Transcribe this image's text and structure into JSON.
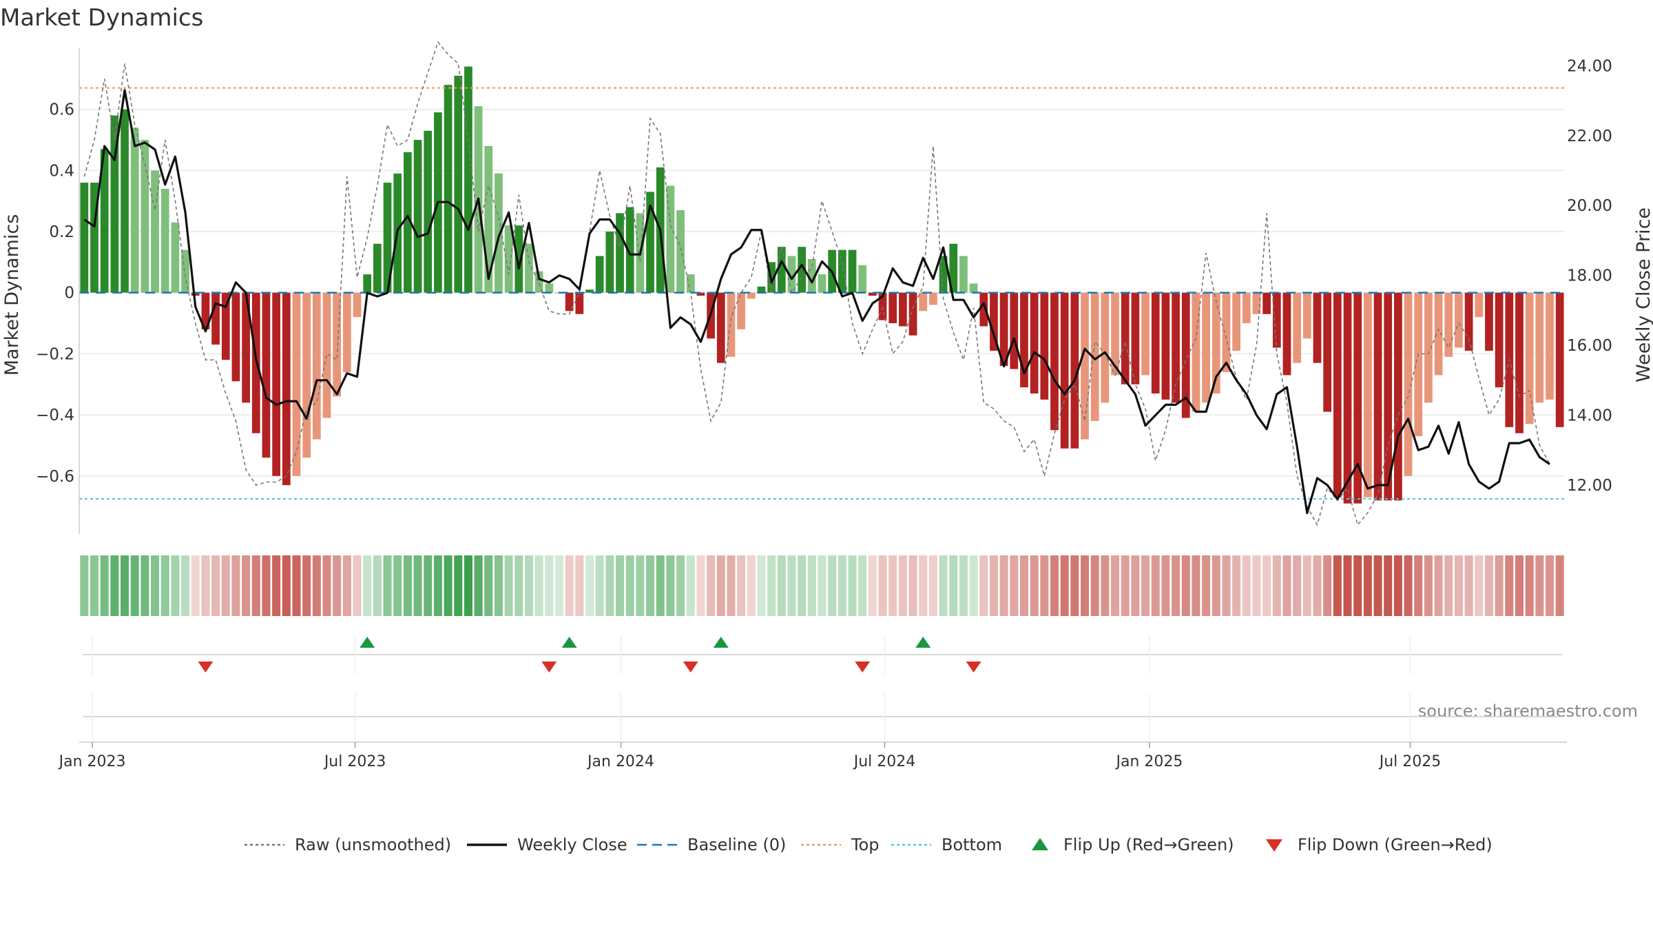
{
  "chart_data": {
    "type": "bar",
    "title": "Market Dynamics",
    "ylabel_left": "Market Dynamics",
    "ylabel_right": "Weekly Close Price",
    "source_note": "source: sharemaestro.com",
    "ylim_left": [
      -0.79,
      0.8
    ],
    "ylim_right": [
      10.6,
      24.5
    ],
    "left_ticks": [
      {
        "value": 0.6,
        "label": "0.6"
      },
      {
        "value": 0.4,
        "label": "0.4"
      },
      {
        "value": 0.2,
        "label": "0.2"
      },
      {
        "value": 0,
        "label": "0"
      },
      {
        "value": -0.2,
        "label": "−0.2"
      },
      {
        "value": -0.4,
        "label": "−0.4"
      },
      {
        "value": -0.6,
        "label": "−0.6"
      }
    ],
    "right_ticks": [
      {
        "value": 24,
        "label": "24.00"
      },
      {
        "value": 22,
        "label": "22.00"
      },
      {
        "value": 20,
        "label": "20.00"
      },
      {
        "value": 18,
        "label": "18.00"
      },
      {
        "value": 16,
        "label": "16.00"
      },
      {
        "value": 14,
        "label": "14.00"
      },
      {
        "value": 12,
        "label": "12.00"
      }
    ],
    "x_ticks": [
      {
        "index": 1.3,
        "label": "Jan 2023"
      },
      {
        "index": 27.3,
        "label": "Jul 2023"
      },
      {
        "index": 53.6,
        "label": "Jan 2024"
      },
      {
        "index": 79.7,
        "label": "Jul 2024"
      },
      {
        "index": 105.9,
        "label": "Jan 2025"
      },
      {
        "index": 131.7,
        "label": "Jul 2025"
      }
    ],
    "reference_lines": {
      "baseline": 0,
      "top": 0.67,
      "bottom": -0.675
    },
    "series": [
      {
        "name": "Market Dynamics",
        "kind": "bar",
        "values": [
          0.36,
          0.36,
          0.47,
          0.58,
          0.6,
          0.54,
          0.5,
          0.4,
          0.34,
          0.23,
          0.14,
          -0.01,
          -0.12,
          -0.17,
          -0.22,
          -0.29,
          -0.36,
          -0.46,
          -0.54,
          -0.6,
          -0.63,
          -0.6,
          -0.54,
          -0.48,
          -0.41,
          -0.34,
          -0.26,
          -0.08,
          0.06,
          0.16,
          0.36,
          0.39,
          0.46,
          0.5,
          0.53,
          0.59,
          0.68,
          0.71,
          0.74,
          0.61,
          0.48,
          0.39,
          0.22,
          0.22,
          0.16,
          0.07,
          0.03,
          0,
          -0.06,
          -0.07,
          0.01,
          0.12,
          0.2,
          0.26,
          0.28,
          0.26,
          0.33,
          0.41,
          0.35,
          0.27,
          0.06,
          -0.01,
          -0.15,
          -0.23,
          -0.21,
          -0.12,
          -0.02,
          0.02,
          0.1,
          0.15,
          0.12,
          0.15,
          0.11,
          0.06,
          0.14,
          0.14,
          0.14,
          0.09,
          -0.01,
          -0.09,
          -0.1,
          -0.11,
          -0.14,
          -0.06,
          -0.04,
          0.12,
          0.16,
          0.12,
          0.03,
          -0.11,
          -0.19,
          -0.24,
          -0.25,
          -0.31,
          -0.33,
          -0.35,
          -0.45,
          -0.51,
          -0.51,
          -0.48,
          -0.42,
          -0.36,
          -0.27,
          -0.3,
          -0.3,
          -0.27,
          -0.33,
          -0.35,
          -0.36,
          -0.41,
          -0.39,
          -0.36,
          -0.33,
          -0.26,
          -0.19,
          -0.1,
          -0.07,
          -0.07,
          -0.18,
          -0.27,
          -0.23,
          -0.15,
          -0.23,
          -0.39,
          -0.67,
          -0.69,
          -0.69,
          -0.67,
          -0.68,
          -0.68,
          -0.68,
          -0.6,
          -0.47,
          -0.36,
          -0.27,
          -0.21,
          -0.18,
          -0.19,
          -0.08,
          -0.19,
          -0.31,
          -0.44,
          -0.46,
          -0.43,
          -0.36,
          -0.35,
          -0.44
        ]
      },
      {
        "name": "Raw (unsmoothed)",
        "kind": "line",
        "values": [
          0.38,
          0.5,
          0.7,
          0.5,
          0.75,
          0.55,
          0.42,
          0.27,
          0.5,
          0.3,
          0.05,
          -0.1,
          -0.22,
          -0.22,
          -0.33,
          -0.42,
          -0.58,
          -0.63,
          -0.62,
          -0.62,
          -0.6,
          -0.52,
          -0.38,
          -0.36,
          -0.2,
          -0.22,
          0.38,
          0.05,
          0.18,
          0.35,
          0.55,
          0.48,
          0.5,
          0.62,
          0.72,
          0.82,
          0.78,
          0.75,
          0.5,
          0.2,
          0.35,
          0.25,
          0.06,
          0.32,
          0.1,
          0.03,
          -0.06,
          -0.07,
          -0.07,
          0.0,
          0.2,
          0.4,
          0.25,
          0.15,
          0.35,
          0.1,
          0.57,
          0.52,
          0.22,
          0.15,
          0.0,
          -0.25,
          -0.42,
          -0.36,
          -0.08,
          0.0,
          0.05,
          0.2,
          0.0,
          0.15,
          0.0,
          0.05,
          0.08,
          0.3,
          0.2,
          0.1,
          -0.1,
          -0.2,
          -0.12,
          -0.05,
          -0.2,
          -0.16,
          -0.05,
          0.02,
          0.48,
          -0.02,
          -0.13,
          -0.22,
          -0.05,
          -0.36,
          -0.38,
          -0.42,
          -0.44,
          -0.52,
          -0.48,
          -0.6,
          -0.46,
          -0.35,
          -0.3,
          -0.42,
          -0.16,
          -0.2,
          -0.27,
          -0.16,
          -0.3,
          -0.38,
          -0.55,
          -0.45,
          -0.3,
          -0.22,
          -0.15,
          0.13,
          -0.03,
          -0.15,
          -0.28,
          -0.35,
          -0.17,
          0.26,
          -0.2,
          -0.36,
          -0.6,
          -0.7,
          -0.76,
          -0.64,
          -0.68,
          -0.64,
          -0.76,
          -0.72,
          -0.66,
          -0.5,
          -0.4,
          -0.34,
          -0.2,
          -0.2,
          -0.12,
          -0.18,
          -0.1,
          -0.15,
          -0.28,
          -0.4,
          -0.35,
          -0.22,
          -0.34,
          -0.32,
          -0.5,
          -0.56
        ]
      },
      {
        "name": "Weekly Close",
        "kind": "line",
        "axis": "right",
        "values": [
          19.6,
          19.4,
          21.7,
          21.3,
          23.3,
          21.7,
          21.8,
          21.6,
          20.6,
          21.4,
          19.8,
          17.1,
          16.4,
          17.2,
          17.1,
          17.8,
          17.5,
          15.6,
          14.5,
          14.3,
          14.4,
          14.4,
          13.9,
          15.0,
          15.0,
          14.6,
          15.2,
          15.1,
          17.5,
          17.4,
          17.5,
          19.3,
          19.7,
          19.1,
          19.2,
          20.1,
          20.1,
          19.9,
          19.3,
          20.2,
          17.9,
          19.1,
          19.8,
          18.2,
          19.5,
          17.9,
          17.8,
          18.0,
          17.9,
          17.6,
          19.2,
          19.6,
          19.6,
          19.2,
          18.6,
          18.6,
          20.0,
          19.3,
          16.5,
          16.8,
          16.6,
          16.1,
          16.9,
          17.9,
          18.6,
          18.8,
          19.3,
          19.3,
          17.8,
          18.4,
          17.9,
          18.3,
          17.8,
          18.4,
          18.1,
          17.4,
          17.5,
          16.7,
          17.2,
          17.4,
          18.2,
          17.8,
          17.7,
          18.5,
          17.9,
          18.8,
          17.3,
          17.3,
          16.8,
          17.2,
          16.3,
          15.4,
          16.2,
          15.2,
          15.8,
          15.6,
          15.0,
          14.6,
          15.0,
          15.9,
          15.6,
          15.8,
          15.4,
          15.0,
          14.6,
          13.7,
          14.0,
          14.3,
          14.3,
          14.5,
          14.1,
          14.1,
          15.1,
          15.5,
          15.0,
          14.6,
          14.0,
          13.6,
          14.6,
          14.8,
          13.1,
          11.2,
          12.2,
          12.0,
          11.6,
          12.1,
          12.6,
          11.9,
          12.0,
          12.0,
          13.4,
          13.9,
          13.0,
          13.1,
          13.7,
          12.9,
          13.8,
          12.6,
          12.1,
          11.9,
          12.1,
          13.2,
          13.2,
          13.3,
          12.8,
          12.6
        ]
      }
    ],
    "flip_up_indices": [
      28,
      48,
      63,
      83
    ],
    "flip_down_indices": [
      12,
      46,
      60,
      77,
      88
    ],
    "strip_tracks": [
      {
        "name": "Flip Up (Red→Green)",
        "color": "#1a9641"
      },
      {
        "name": "Flip Down (Green→Red)",
        "color": "#d73027"
      }
    ],
    "legend": [
      {
        "label": "Raw (unsmoothed)",
        "style": "dotted",
        "color": "#777777"
      },
      {
        "label": "Weekly Close",
        "style": "solid",
        "color": "#111111"
      },
      {
        "label": "Baseline (0)",
        "style": "dashed",
        "color": "#1f77b4"
      },
      {
        "label": "Top",
        "style": "dotted",
        "color": "#e39a5b"
      },
      {
        "label": "Bottom",
        "style": "dotted",
        "color": "#4fc3e0"
      },
      {
        "label": "Flip Up (Red→Green)",
        "style": "triangle-up",
        "color": "#1a9641"
      },
      {
        "label": "Flip Down (Green→Red)",
        "style": "triangle-down",
        "color": "#d73027"
      }
    ],
    "legend_position": "bottom-center",
    "grid": true,
    "colors": {
      "strong_positive": "#2a8a2a",
      "weak_positive": "#7fbf7b",
      "strong_negative": "#b22222",
      "weak_negative": "#e8967a",
      "flip_up": "#1a9641",
      "flip_down": "#d73027"
    }
  }
}
